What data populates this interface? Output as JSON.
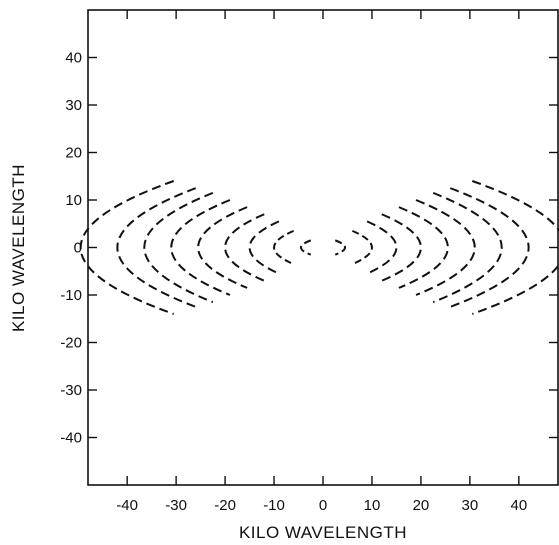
{
  "chart_data": {
    "type": "scatter",
    "title": "",
    "xlabel": "KILO WAVELENGTH",
    "ylabel": "KILO WAVELENGTH",
    "xlim": [
      -48,
      48
    ],
    "ylim": [
      -50,
      50
    ],
    "xticks": [
      -40,
      -30,
      -20,
      -10,
      0,
      10,
      20,
      30,
      40
    ],
    "yticks": [
      -40,
      -30,
      -20,
      -10,
      0,
      10,
      20,
      30,
      40
    ],
    "xtick_labels": [
      "-40",
      "-30",
      "-20",
      "-10",
      "0",
      "10",
      "20",
      "30",
      "40"
    ],
    "ytick_labels": [
      "-40",
      "-30",
      "-20",
      "-10",
      "0",
      "10",
      "20",
      "30",
      "40"
    ],
    "grid": false,
    "description_of_marks": "symmetric pairs of dashed arcs (uv-coverage tracks), one pair per baseline",
    "arcs": [
      {
        "u_center": 3.5,
        "v_half_extent": 1.5,
        "bow": 1.0
      },
      {
        "u_center": 8.0,
        "v_half_extent": 3.5,
        "bow": 2.0
      },
      {
        "u_center": 12.0,
        "v_half_extent": 5.5,
        "bow": 3.0
      },
      {
        "u_center": 16.0,
        "v_half_extent": 7.0,
        "bow": 4.0
      },
      {
        "u_center": 20.5,
        "v_half_extent": 8.5,
        "bow": 5.0
      },
      {
        "u_center": 25.0,
        "v_half_extent": 10.0,
        "bow": 6.0
      },
      {
        "u_center": 29.5,
        "v_half_extent": 11.5,
        "bow": 7.0
      },
      {
        "u_center": 34.0,
        "v_half_extent": 12.5,
        "bow": 8.0
      },
      {
        "u_center": 40.0,
        "v_half_extent": 14.0,
        "bow": 9.5
      }
    ]
  }
}
